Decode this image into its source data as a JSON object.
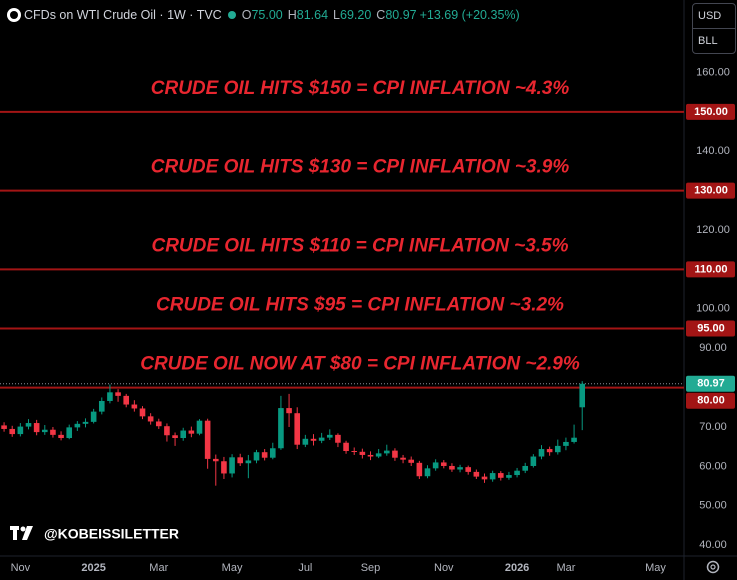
{
  "chart_data": {
    "type": "candlestick",
    "title": "CFDs on WTI Crude Oil · 1W · TVC",
    "header_stats": [
      {
        "label": "O",
        "value": "75.00"
      },
      {
        "label": "H",
        "value": "81.64"
      },
      {
        "label": "L",
        "value": "69.20"
      },
      {
        "label": "C",
        "value": "80.97"
      }
    ],
    "change": "+13.69 (+20.35%)",
    "currency": "USD",
    "unit": "BLL",
    "watermark": "@KOBEISSILETTER",
    "up_color": "#089981",
    "down_color": "#f23645",
    "level_color": "#a31515",
    "annotation_color": "#e8262f",
    "categories": [
      null,
      null,
      "Nov",
      null,
      null,
      null,
      null,
      null,
      null,
      null,
      null,
      "2025",
      null,
      null,
      null,
      null,
      null,
      null,
      null,
      "Mar",
      null,
      null,
      null,
      null,
      null,
      null,
      null,
      null,
      "May",
      null,
      null,
      null,
      null,
      null,
      null,
      null,
      null,
      "Jul",
      null,
      null,
      null,
      null,
      null,
      null,
      null,
      "Sep",
      null,
      null,
      null,
      null,
      null,
      null,
      null,
      null,
      "Nov",
      null,
      null,
      null,
      null,
      null,
      null,
      null,
      null,
      "2026",
      null,
      null,
      null,
      null,
      null,
      "Mar",
      null,
      null,
      null,
      null,
      null,
      null,
      null,
      null,
      null,
      null,
      "May",
      null,
      null,
      null
    ],
    "open": [
      70.4,
      69.5,
      68.2,
      70.1,
      71.0,
      68.7,
      69.3,
      68.0,
      67.2,
      69.9,
      70.8,
      71.3,
      73.9,
      76.6,
      78.8,
      77.9,
      75.7,
      74.7,
      72.7,
      71.4,
      70.2,
      67.9,
      67.2,
      69.1,
      68.3,
      71.6,
      61.9,
      61.3,
      58.2,
      62.3,
      60.8,
      61.5,
      63.6,
      62.2,
      64.6,
      74.8,
      73.5,
      65.5,
      67.0,
      66.5,
      67.3,
      68.0,
      66.0,
      63.9,
      63.7,
      62.9,
      62.5,
      63.3,
      64.0,
      62.2,
      61.7,
      60.9,
      57.5,
      59.5,
      61.0,
      60.1,
      59.2,
      59.8,
      58.6,
      57.4,
      56.7,
      58.3,
      57.1,
      57.8,
      58.9,
      60.1,
      62.5,
      64.4,
      63.6,
      65.2,
      66.2,
      75.0,
      null,
      null,
      null,
      null,
      null,
      null,
      null,
      null,
      null,
      null,
      null,
      null
    ],
    "high": [
      71.2,
      70.3,
      71.0,
      72.0,
      71.8,
      70.5,
      70.0,
      68.9,
      70.6,
      71.5,
      72.2,
      74.6,
      77.5,
      80.8,
      79.6,
      78.4,
      76.8,
      75.3,
      73.5,
      72.1,
      70.9,
      68.6,
      69.8,
      70.1,
      72.0,
      72.1,
      63.0,
      62.4,
      63.1,
      63.2,
      62.9,
      64.2,
      64.4,
      66.0,
      77.9,
      78.4,
      75.0,
      68.0,
      68.2,
      68.5,
      69.4,
      68.4,
      66.5,
      64.8,
      64.5,
      63.8,
      64.4,
      65.5,
      64.6,
      62.9,
      62.5,
      61.4,
      60.3,
      61.8,
      61.6,
      60.8,
      60.4,
      60.2,
      59.2,
      58.2,
      58.9,
      58.8,
      58.6,
      59.6,
      60.9,
      63.1,
      65.4,
      65.0,
      66.8,
      67.3,
      70.6,
      81.64,
      null,
      null,
      null,
      null,
      null,
      null,
      null,
      null,
      null,
      null,
      null,
      null
    ],
    "low": [
      68.8,
      67.5,
      67.6,
      69.4,
      67.9,
      68.0,
      67.3,
      66.6,
      66.9,
      69.0,
      69.9,
      70.9,
      73.2,
      76.0,
      76.4,
      75.0,
      73.9,
      72.0,
      70.6,
      69.5,
      66.3,
      65.2,
      66.5,
      67.4,
      67.9,
      59.4,
      55.1,
      56.8,
      57.2,
      60.1,
      57.0,
      60.8,
      61.5,
      61.8,
      64.2,
      70.0,
      64.4,
      64.9,
      65.3,
      65.9,
      66.7,
      64.9,
      63.2,
      62.9,
      62.0,
      61.6,
      62.1,
      62.7,
      61.4,
      60.8,
      60.1,
      56.8,
      57.0,
      58.9,
      59.5,
      58.6,
      58.5,
      57.9,
      56.8,
      55.8,
      56.1,
      56.4,
      56.6,
      57.2,
      58.3,
      59.7,
      61.8,
      62.7,
      63.0,
      64.1,
      65.8,
      69.2,
      null,
      null,
      null,
      null,
      null,
      null,
      null,
      null,
      null,
      null,
      null,
      null
    ],
    "close": [
      69.5,
      68.2,
      70.1,
      71.0,
      68.7,
      69.3,
      68.0,
      67.2,
      69.9,
      70.8,
      71.3,
      73.9,
      76.6,
      78.8,
      77.9,
      75.7,
      74.7,
      72.7,
      71.4,
      70.2,
      67.9,
      67.2,
      69.1,
      68.3,
      71.6,
      61.9,
      61.3,
      58.2,
      62.3,
      60.8,
      61.5,
      63.6,
      62.2,
      64.6,
      74.8,
      73.5,
      65.5,
      67.0,
      66.5,
      67.3,
      68.0,
      66.0,
      63.9,
      63.7,
      62.9,
      62.5,
      63.3,
      64.0,
      62.2,
      61.7,
      60.9,
      57.5,
      59.5,
      61.0,
      60.1,
      59.2,
      59.8,
      58.6,
      57.4,
      56.7,
      58.3,
      57.1,
      57.8,
      58.9,
      60.1,
      62.5,
      64.4,
      63.6,
      65.2,
      66.2,
      67.28,
      80.97,
      null,
      null,
      null,
      null,
      null,
      null,
      null,
      null,
      null,
      null,
      null,
      null
    ],
    "ylim": [
      37.5,
      178.4
    ],
    "yticks": [
      {
        "value": 40,
        "label": "40.00"
      },
      {
        "value": 50,
        "label": "50.00"
      },
      {
        "value": 60,
        "label": "60.00"
      },
      {
        "value": 70,
        "label": "70.00"
      },
      {
        "value": 80,
        "label": "80.00"
      },
      {
        "value": 90,
        "label": "90.00"
      },
      {
        "value": 100,
        "label": "100.00"
      },
      {
        "value": 110,
        "label": "110.00"
      },
      {
        "value": 120,
        "label": "120.00"
      },
      {
        "value": 130,
        "label": "130.00"
      },
      {
        "value": 140,
        "label": "140.00"
      },
      {
        "value": 150,
        "label": "150.00"
      },
      {
        "value": 160,
        "label": "160.00"
      }
    ],
    "levels": [
      {
        "value": 150,
        "label": "150.00",
        "text": "CRUDE OIL HITS $150 = CPI INFLATION ~4.3%"
      },
      {
        "value": 130,
        "label": "130.00",
        "text": "CRUDE OIL HITS $130 = CPI INFLATION ~3.9%"
      },
      {
        "value": 110,
        "label": "110.00",
        "text": "CRUDE OIL HITS $110 = CPI INFLATION ~3.5%"
      },
      {
        "value": 95,
        "label": "95.00",
        "text": "CRUDE OIL HITS $95 = CPI INFLATION ~3.2%"
      },
      {
        "value": 80,
        "label": "80.00",
        "text": "CRUDE OIL NOW AT $80 = CPI INFLATION ~2.9%"
      }
    ],
    "last_price": {
      "value": 80.97,
      "label": "80.97",
      "color": "#22ab94"
    }
  }
}
